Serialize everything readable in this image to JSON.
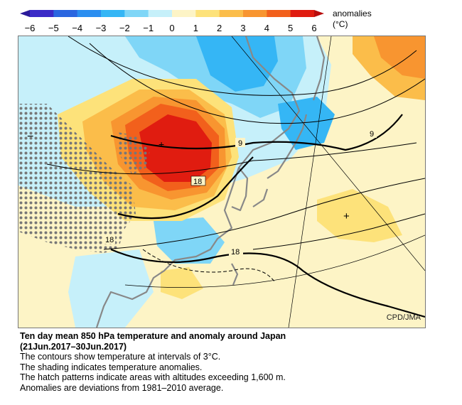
{
  "legend": {
    "title_line1": "anomalies",
    "title_line2": "(°C)",
    "ticks": [
      "−6",
      "−5",
      "−4",
      "−3",
      "−2",
      "−1",
      "0",
      "1",
      "2",
      "3",
      "4",
      "5",
      "6"
    ],
    "colors": [
      "#3b2bc7",
      "#2a66e0",
      "#2a8ef0",
      "#35b6f5",
      "#7fd6f7",
      "#c6f0fa",
      "#fdf4c6",
      "#fde27a",
      "#fbbd4a",
      "#f89530",
      "#f2601c",
      "#e01c10"
    ]
  },
  "map": {
    "credit": "CPD/JMA",
    "contour_labels": [
      "9",
      "9",
      "18",
      "18",
      "18"
    ],
    "high_marker": "+",
    "low_marker": "−"
  },
  "caption": {
    "title": "Ten day mean 850 hPa temperature and anomaly around Japan",
    "period": "(21Jun.2017–30Jun.2017)",
    "line1": "The contours show temperature at intervals of 3°C.",
    "line2": "The shading indicates temperature anomalies.",
    "line3": "The hatch patterns indicate areas with altitudes exceeding 1,600 m.",
    "line4": "Anomalies are deviations from 1981–2010 average."
  }
}
